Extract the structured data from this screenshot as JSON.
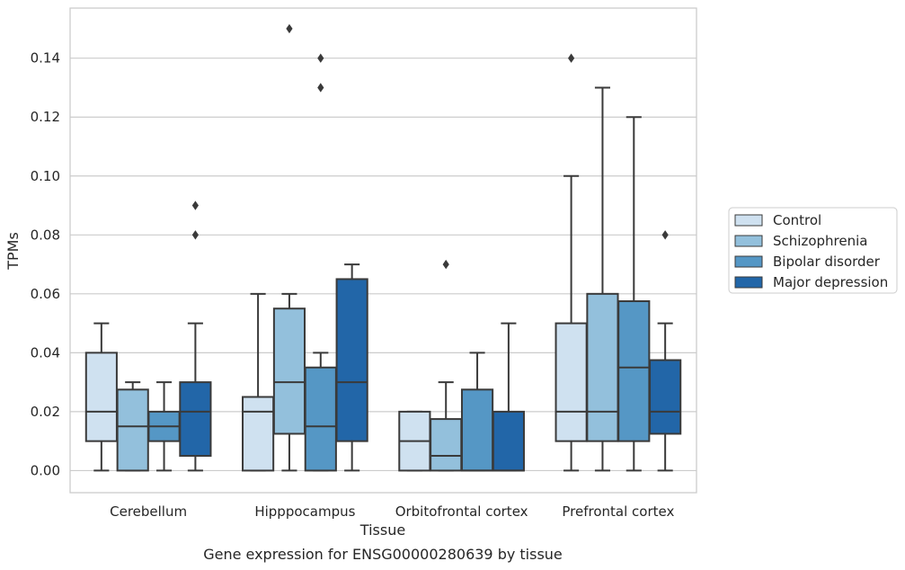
{
  "chart_data": {
    "type": "boxplot",
    "title": "",
    "caption": "Gene expression for ENSG00000280639 by tissue",
    "xlabel": "Tissue",
    "ylabel": "TPMs",
    "ylim": [
      -0.0075,
      0.157
    ],
    "yticks": [
      0.0,
      0.02,
      0.04,
      0.06,
      0.08,
      0.1,
      0.12,
      0.14
    ],
    "ytick_labels": [
      "0.00",
      "0.02",
      "0.04",
      "0.06",
      "0.08",
      "0.10",
      "0.12",
      "0.14"
    ],
    "grid": "horizontal",
    "legend_position": "right",
    "categories": [
      "Cerebellum",
      "Hipppocampus",
      "Orbitofrontal cortex",
      "Prefrontal cortex"
    ],
    "series": [
      {
        "name": "Control",
        "color": "#cfe1f0",
        "boxes": [
          {
            "whislo": 0.0,
            "q1": 0.01,
            "med": 0.02,
            "q3": 0.04,
            "whishi": 0.05,
            "fliers": []
          },
          {
            "whislo": 0.0,
            "q1": 0.0,
            "med": 0.02,
            "q3": 0.025,
            "whishi": 0.06,
            "fliers": []
          },
          {
            "whislo": 0.0,
            "q1": 0.0,
            "med": 0.01,
            "q3": 0.02,
            "whishi": 0.02,
            "fliers": []
          },
          {
            "whislo": 0.0,
            "q1": 0.01,
            "med": 0.02,
            "q3": 0.05,
            "whishi": 0.1,
            "fliers": [
              0.14
            ]
          }
        ]
      },
      {
        "name": "Schizophrenia",
        "color": "#93c0dc",
        "boxes": [
          {
            "whislo": 0.0,
            "q1": 0.0,
            "med": 0.015,
            "q3": 0.0275,
            "whishi": 0.03,
            "fliers": []
          },
          {
            "whislo": 0.0,
            "q1": 0.0125,
            "med": 0.03,
            "q3": 0.055,
            "whishi": 0.06,
            "fliers": [
              0.15
            ]
          },
          {
            "whislo": 0.0,
            "q1": 0.0,
            "med": 0.005,
            "q3": 0.0175,
            "whishi": 0.03,
            "fliers": [
              0.07
            ]
          },
          {
            "whislo": 0.0,
            "q1": 0.01,
            "med": 0.02,
            "q3": 0.06,
            "whishi": 0.13,
            "fliers": []
          }
        ]
      },
      {
        "name": "Bipolar disorder",
        "color": "#5597c5",
        "boxes": [
          {
            "whislo": 0.0,
            "q1": 0.01,
            "med": 0.015,
            "q3": 0.02,
            "whishi": 0.03,
            "fliers": []
          },
          {
            "whislo": 0.0,
            "q1": 0.0,
            "med": 0.015,
            "q3": 0.035,
            "whishi": 0.04,
            "fliers": [
              0.14,
              0.13
            ]
          },
          {
            "whislo": 0.0,
            "q1": 0.0,
            "med": 0.0,
            "q3": 0.0275,
            "whishi": 0.04,
            "fliers": []
          },
          {
            "whislo": 0.0,
            "q1": 0.01,
            "med": 0.035,
            "q3": 0.0575,
            "whishi": 0.12,
            "fliers": []
          }
        ]
      },
      {
        "name": "Major depression",
        "color": "#2266a8",
        "boxes": [
          {
            "whislo": 0.0,
            "q1": 0.005,
            "med": 0.02,
            "q3": 0.03,
            "whishi": 0.05,
            "fliers": [
              0.09,
              0.08
            ]
          },
          {
            "whislo": 0.0,
            "q1": 0.01,
            "med": 0.03,
            "q3": 0.065,
            "whishi": 0.07,
            "fliers": []
          },
          {
            "whislo": 0.0,
            "q1": 0.0,
            "med": 0.0,
            "q3": 0.02,
            "whishi": 0.05,
            "fliers": []
          },
          {
            "whislo": 0.0,
            "q1": 0.0125,
            "med": 0.02,
            "q3": 0.0375,
            "whishi": 0.05,
            "fliers": [
              0.08
            ]
          }
        ]
      }
    ],
    "style": {
      "edge_color": "#3a3a3a",
      "grid_color": "#cccccc",
      "frame_color": "#c8c8c8",
      "background": "#ffffff"
    }
  }
}
